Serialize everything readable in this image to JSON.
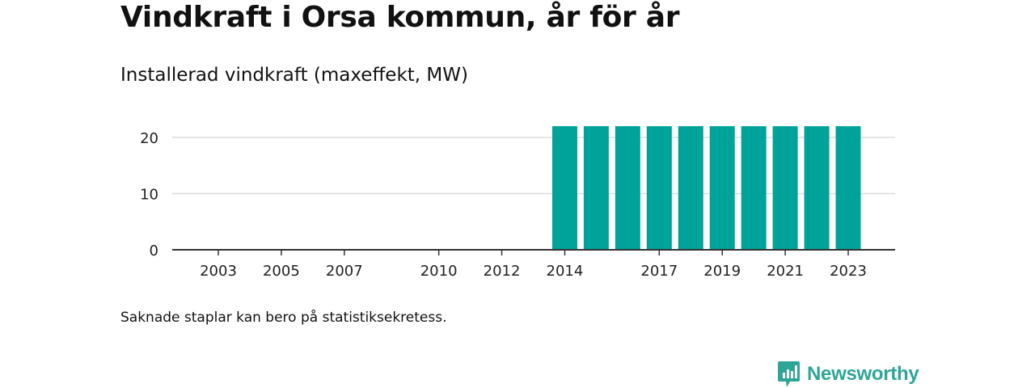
{
  "title": "Vindkraft i Orsa kommun, år för år",
  "subtitle": "Installerad vindkraft (maxeffekt, MW)",
  "footnote": "Saknade staplar kan bero på statistiksekretess.",
  "brand": {
    "name": "Newsworthy",
    "icon": "newsworthy-bar-chart-logo-icon",
    "color": "#2ea597"
  },
  "chart_data": {
    "type": "bar",
    "categories": [
      "2003",
      "2004",
      "2005",
      "2006",
      "2007",
      "2008",
      "2009",
      "2010",
      "2011",
      "2012",
      "2013",
      "2014",
      "2015",
      "2016",
      "2017",
      "2018",
      "2019",
      "2020",
      "2021",
      "2022",
      "2023"
    ],
    "values": [
      0,
      0,
      0,
      0,
      0,
      0,
      0,
      0,
      0,
      0,
      0,
      22,
      22,
      22,
      22,
      22,
      22,
      22,
      22,
      22,
      22
    ],
    "x_tick_labels": [
      "2003",
      "2005",
      "2007",
      "2010",
      "2012",
      "2014",
      "2017",
      "2019",
      "2021",
      "2023"
    ],
    "y_ticks": [
      0,
      10,
      20
    ],
    "ylim": [
      0,
      22
    ],
    "xlabel": "",
    "ylabel": "",
    "grid": true,
    "bar_color": "#00a39a"
  }
}
